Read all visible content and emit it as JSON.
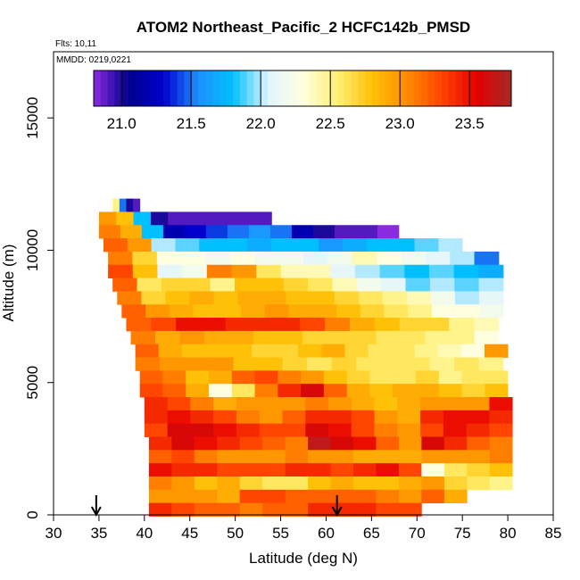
{
  "chart_data": {
    "type": "heatmap",
    "title": "ATOM2 Northeast_Pacific_2 HCFC142b_PMSD",
    "flights_label": "Flts: 10,11",
    "dates_label": "MMDD: 0219,0221",
    "xlabel": "Latitude (deg N)",
    "ylabel": "Altitude (m)",
    "xlim": [
      30,
      85
    ],
    "ylim": [
      0,
      17500
    ],
    "x_ticks": [
      "30",
      "35",
      "40",
      "45",
      "50",
      "55",
      "60",
      "65",
      "70",
      "75",
      "80",
      "85"
    ],
    "y_ticks": [
      "0",
      "5000",
      "10000",
      "15000"
    ],
    "colorbar": {
      "range": [
        20.8,
        23.8
      ],
      "tick_labels": [
        "21.0",
        "21.5",
        "22.0",
        "22.5",
        "23.0",
        "23.5"
      ],
      "tick_values": [
        21.0,
        21.5,
        22.0,
        22.5,
        23.0,
        23.5
      ],
      "colors": [
        "#8a2be2",
        "#00008b",
        "#0000cd",
        "#1e90ff",
        "#00bfff",
        "#e0f4ff",
        "#ffffe0",
        "#fff176",
        "#ffc107",
        "#ff8c00",
        "#ff4500",
        "#e60000",
        "#a52a2a"
      ]
    },
    "arrows_at_lat": [
      34.7,
      61.2
    ],
    "bands": [
      {
        "alt": 11700,
        "lat_min": 36.5,
        "lat_max": 39.5,
        "values": [
          22.5,
          21.5,
          21.0,
          20.9
        ]
      },
      {
        "alt": 11200,
        "lat_min": 35.0,
        "lat_max": 54.0,
        "values": [
          23.0,
          22.8,
          21.8,
          21.0,
          20.9,
          20.9,
          20.9,
          20.9,
          20.9,
          20.9
        ]
      },
      {
        "alt": 10700,
        "lat_min": 35.0,
        "lat_max": 68.0,
        "values": [
          23.1,
          22.9,
          21.8,
          21.2,
          21.3,
          21.4,
          21.5,
          21.6,
          21.5,
          21.2,
          21.0,
          20.9,
          20.9,
          20.8
        ]
      },
      {
        "alt": 10200,
        "lat_min": 35.5,
        "lat_max": 75.0,
        "values": [
          23.2,
          23.0,
          22.0,
          21.9,
          21.8,
          21.8,
          21.7,
          21.8,
          21.8,
          21.6,
          21.7,
          21.8,
          21.8,
          21.9,
          22.0
        ]
      },
      {
        "alt": 9700,
        "lat_min": 36.0,
        "lat_max": 79.0,
        "values": [
          23.1,
          22.7,
          22.3,
          22.3,
          22.2,
          22.3,
          22.2,
          22.2,
          22.1,
          22.2,
          22.4,
          22.3,
          22.2,
          22.1,
          22.0,
          21.5
        ]
      },
      {
        "alt": 9200,
        "lat_min": 36.0,
        "lat_max": 79.5,
        "values": [
          23.3,
          22.8,
          22.1,
          22.2,
          23.1,
          23.0,
          22.6,
          22.4,
          22.4,
          22.1,
          22.0,
          21.9,
          21.8,
          21.9,
          21.8,
          21.7
        ]
      },
      {
        "alt": 8700,
        "lat_min": 36.5,
        "lat_max": 79.5,
        "values": [
          23.2,
          22.6,
          22.7,
          22.7,
          22.5,
          22.8,
          22.8,
          22.7,
          22.6,
          22.4,
          22.2,
          22.1,
          21.9,
          22.0,
          21.9,
          22.0
        ]
      },
      {
        "alt": 8200,
        "lat_min": 37.0,
        "lat_max": 79.5,
        "values": [
          23.1,
          22.7,
          22.8,
          22.9,
          22.8,
          22.9,
          22.9,
          22.8,
          22.8,
          22.7,
          22.6,
          22.5,
          22.4,
          22.2,
          22.0,
          22.1
        ]
      },
      {
        "alt": 7700,
        "lat_min": 37.5,
        "lat_max": 79.5,
        "values": [
          23.2,
          23.0,
          22.9,
          22.8,
          22.8,
          22.9,
          23.0,
          22.9,
          22.9,
          22.8,
          22.7,
          22.6,
          22.5,
          22.3,
          22.3,
          22.2
        ]
      },
      {
        "alt": 7200,
        "lat_min": 38.0,
        "lat_max": 79.0,
        "values": [
          23.2,
          23.3,
          23.5,
          23.5,
          23.4,
          23.4,
          23.4,
          23.3,
          23.1,
          22.9,
          22.8,
          22.7,
          22.7,
          22.5,
          22.4
        ]
      },
      {
        "alt": 6700,
        "lat_min": 38.5,
        "lat_max": 79.0,
        "values": [
          23.1,
          22.9,
          23.0,
          22.9,
          22.9,
          22.8,
          22.8,
          22.7,
          22.7,
          22.7,
          22.6,
          22.6,
          22.5,
          22.5,
          22.3
        ]
      },
      {
        "alt": 6200,
        "lat_min": 39.0,
        "lat_max": 80.0,
        "values": [
          23.2,
          22.9,
          22.8,
          22.8,
          22.8,
          22.7,
          22.7,
          22.8,
          22.9,
          22.7,
          22.6,
          22.6,
          22.5,
          22.4,
          22.3,
          23.0
        ]
      },
      {
        "alt": 5700,
        "lat_min": 39.0,
        "lat_max": 79.5,
        "values": [
          23.1,
          23.0,
          23.0,
          23.0,
          22.8,
          22.8,
          22.7,
          22.6,
          22.7,
          22.6,
          22.6,
          22.6,
          22.5,
          22.6,
          22.5
        ]
      },
      {
        "alt": 5200,
        "lat_min": 39.5,
        "lat_max": 80.0,
        "values": [
          23.2,
          23.1,
          22.8,
          22.9,
          23.2,
          23.3,
          23.1,
          23.0,
          22.8,
          22.7,
          22.6,
          22.6,
          22.7,
          22.5,
          22.6,
          22.6
        ]
      },
      {
        "alt": 4700,
        "lat_min": 39.5,
        "lat_max": 80.0,
        "values": [
          23.3,
          23.2,
          22.9,
          22.3,
          22.6,
          23.1,
          23.4,
          23.6,
          23.2,
          22.9,
          22.8,
          22.9,
          22.9,
          22.8,
          22.7,
          22.8
        ]
      },
      {
        "alt": 4200,
        "lat_min": 40.0,
        "lat_max": 80.5,
        "values": [
          23.4,
          23.3,
          23.1,
          22.9,
          23.0,
          23.0,
          23.0,
          23.1,
          23.0,
          22.9,
          22.8,
          22.9,
          23.0,
          23.0,
          23.0,
          23.5
        ]
      },
      {
        "alt": 3700,
        "lat_min": 40.0,
        "lat_max": 80.5,
        "values": [
          23.4,
          23.5,
          23.4,
          23.3,
          23.1,
          23.0,
          23.2,
          23.4,
          23.4,
          23.3,
          23.0,
          22.9,
          23.4,
          23.5,
          23.5,
          23.4
        ]
      },
      {
        "alt": 3200,
        "lat_min": 40.0,
        "lat_max": 80.5,
        "values": [
          23.3,
          23.6,
          23.6,
          23.5,
          23.4,
          23.3,
          23.3,
          23.6,
          23.5,
          23.3,
          23.1,
          23.0,
          23.3,
          23.5,
          23.4,
          23.3
        ]
      },
      {
        "alt": 2700,
        "lat_min": 40.5,
        "lat_max": 80.5,
        "values": [
          23.4,
          23.6,
          23.5,
          23.4,
          23.3,
          23.2,
          23.1,
          23.7,
          23.6,
          23.5,
          23.2,
          23.0,
          23.6,
          23.4,
          23.2,
          23.1
        ]
      },
      {
        "alt": 2200,
        "lat_min": 40.5,
        "lat_max": 80.5,
        "values": [
          23.2,
          23.3,
          23.1,
          23.0,
          23.0,
          23.0,
          23.1,
          23.0,
          23.0,
          22.9,
          22.9,
          22.9,
          23.0,
          23.0,
          23.0,
          23.1
        ]
      },
      {
        "alt": 1700,
        "lat_min": 40.5,
        "lat_max": 80.5,
        "values": [
          23.5,
          23.4,
          23.4,
          23.3,
          23.3,
          23.3,
          23.4,
          23.4,
          23.3,
          23.4,
          23.5,
          23.3,
          22.3,
          22.6,
          22.7,
          22.8
        ]
      },
      {
        "alt": 1200,
        "lat_min": 40.5,
        "lat_max": 80.5,
        "values": [
          23.1,
          23.0,
          22.8,
          22.9,
          22.7,
          22.6,
          22.6,
          22.8,
          22.9,
          22.8,
          22.8,
          22.9,
          23.0,
          22.7,
          22.6,
          22.5
        ]
      },
      {
        "alt": 700,
        "lat_min": 40.5,
        "lat_max": 75.5,
        "values": [
          23.0,
          23.0,
          23.0,
          22.9,
          23.3,
          23.3,
          23.2,
          23.2,
          23.2,
          23.2,
          23.1,
          23.0,
          23.2,
          22.9
        ]
      },
      {
        "alt": 200,
        "lat_min": 40.5,
        "lat_max": 70.5,
        "values": [
          23.4,
          23.3,
          23.2,
          23.2,
          23.1,
          23.2,
          23.2,
          23.4,
          23.4,
          23.4,
          23.3,
          23.3
        ]
      }
    ]
  }
}
